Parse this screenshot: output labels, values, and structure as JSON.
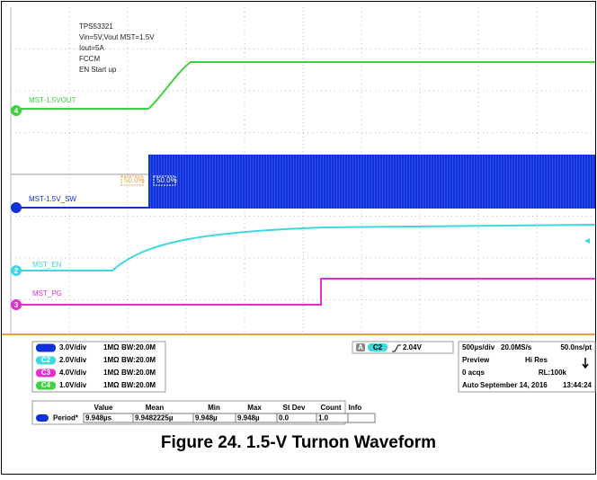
{
  "annotations": [
    "TPS53321",
    "Vin=5V,Vout MST=1.5V",
    "Iout=5A",
    "FCCM",
    "EN Start up"
  ],
  "trace_labels": [
    "MST-1.5VOUT",
    "MST-1.5V_SW",
    "MST_EN",
    "MST_PG"
  ],
  "trace_markers": [
    "4",
    "2",
    "3"
  ],
  "cursor_labels": [
    "50.0%",
    "50.0%"
  ],
  "channels": [
    {
      "badge": "",
      "scale": "3.0V/div",
      "impedance": "1MΩ",
      "bandwidth": "BW:20.0M"
    },
    {
      "badge": "C2",
      "scale": "2.0V/div",
      "impedance": "1MΩ",
      "bandwidth": "BW:20.0M"
    },
    {
      "badge": "C3",
      "scale": "4.0V/div",
      "impedance": "1MΩ",
      "bandwidth": "BW:20.0M"
    },
    {
      "badge": "C4",
      "scale": "1.0V/div",
      "impedance": "1MΩ",
      "bandwidth": "BW:20.0M"
    }
  ],
  "trigger": {
    "mode": "A",
    "source": "C2",
    "level": "2.04V"
  },
  "timebase": [
    [
      "500µs/div",
      "20.0MS/s",
      "50.0ns/pt"
    ],
    [
      "Preview",
      "Hi Res"
    ],
    [
      "0 acqs",
      "RL:100k"
    ],
    [
      "Auto",
      "September 14, 2016",
      "13:44:24"
    ]
  ],
  "measurement": {
    "header": [
      "Value",
      "Mean",
      "Min",
      "Max",
      "St Dev",
      "Count",
      "Info"
    ],
    "row": [
      "Period*",
      "9.948µs",
      "9.9482225µ",
      "9.948µ",
      "9.948µ",
      "0.0",
      "1.0",
      ""
    ]
  },
  "caption": "Figure 24. 1.5-V Turnon Waveform"
}
